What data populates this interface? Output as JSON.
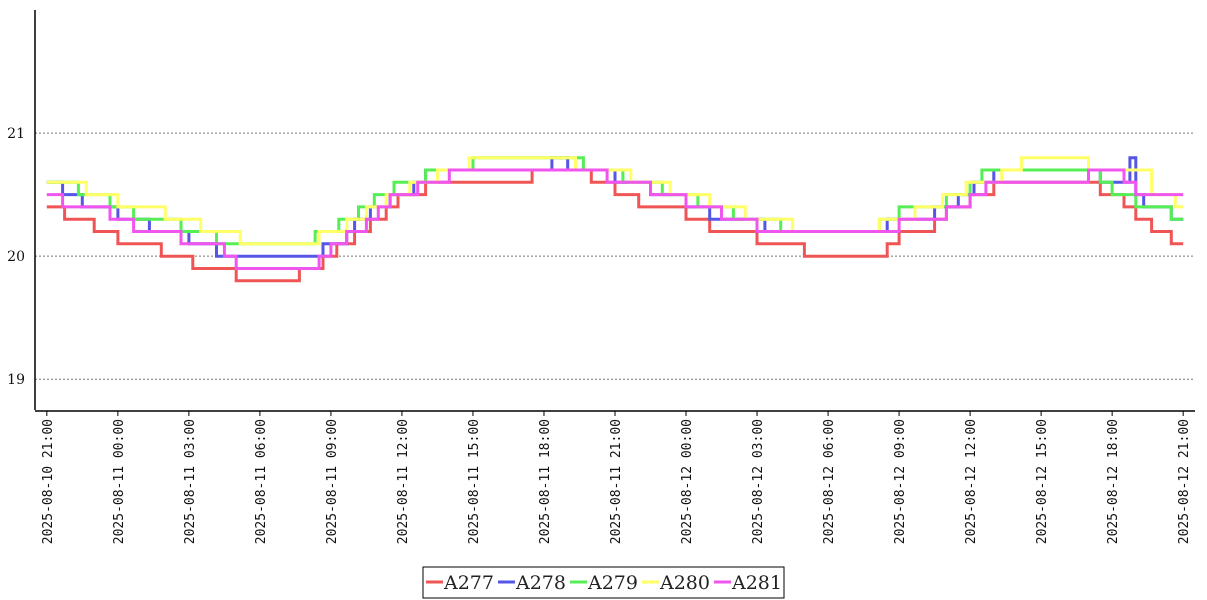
{
  "chart_data": {
    "type": "line",
    "step": true,
    "x_ticks": [
      "2025-08-10 21:00",
      "2025-08-11 00:00",
      "2025-08-11 03:00",
      "2025-08-11 06:00",
      "2025-08-11 09:00",
      "2025-08-11 12:00",
      "2025-08-11 15:00",
      "2025-08-11 18:00",
      "2025-08-11 21:00",
      "2025-08-12 00:00",
      "2025-08-12 03:00",
      "2025-08-12 06:00",
      "2025-08-12 09:00",
      "2025-08-12 12:00",
      "2025-08-12 15:00",
      "2025-08-12 18:00",
      "2025-08-12 21:00"
    ],
    "y_ticks": [
      "19",
      "20",
      "21"
    ],
    "ylim": [
      18.75,
      22
    ],
    "xlim": [
      "2025-08-10 20:30",
      "2025-08-12 21:30"
    ],
    "grid": "horizontal-dotted",
    "legend": "bottom-center",
    "series": [
      {
        "name": "A277",
        "color": "#f05555",
        "points": [
          [
            "2025-08-10 21:00",
            20.4
          ],
          [
            "2025-08-10 21:45",
            20.3
          ],
          [
            "2025-08-10 23:00",
            20.2
          ],
          [
            "2025-08-11 00:00",
            20.1
          ],
          [
            "2025-08-11 01:50",
            20.0
          ],
          [
            "2025-08-11 03:10",
            19.9
          ],
          [
            "2025-08-11 05:00",
            19.8
          ],
          [
            "2025-08-11 07:40",
            19.9
          ],
          [
            "2025-08-11 08:40",
            20.0
          ],
          [
            "2025-08-11 09:15",
            20.1
          ],
          [
            "2025-08-11 10:00",
            20.2
          ],
          [
            "2025-08-11 10:40",
            20.3
          ],
          [
            "2025-08-11 11:20",
            20.4
          ],
          [
            "2025-08-11 11:50",
            20.5
          ],
          [
            "2025-08-11 13:00",
            20.6
          ],
          [
            "2025-08-11 16:00",
            20.6
          ],
          [
            "2025-08-11 17:30",
            20.7
          ],
          [
            "2025-08-11 20:00",
            20.6
          ],
          [
            "2025-08-11 21:00",
            20.5
          ],
          [
            "2025-08-11 22:00",
            20.4
          ],
          [
            "2025-08-12 00:00",
            20.3
          ],
          [
            "2025-08-12 01:00",
            20.2
          ],
          [
            "2025-08-12 03:00",
            20.1
          ],
          [
            "2025-08-12 05:00",
            20.0
          ],
          [
            "2025-08-12 08:30",
            20.1
          ],
          [
            "2025-08-12 09:00",
            20.2
          ],
          [
            "2025-08-12 10:30",
            20.3
          ],
          [
            "2025-08-12 11:00",
            20.4
          ],
          [
            "2025-08-12 12:00",
            20.5
          ],
          [
            "2025-08-12 13:00",
            20.6
          ],
          [
            "2025-08-12 17:30",
            20.5
          ],
          [
            "2025-08-12 18:30",
            20.4
          ],
          [
            "2025-08-12 19:00",
            20.3
          ],
          [
            "2025-08-12 19:40",
            20.2
          ],
          [
            "2025-08-12 20:30",
            20.1
          ],
          [
            "2025-08-12 21:00",
            20.1
          ]
        ]
      },
      {
        "name": "A278",
        "color": "#5555e8",
        "points": [
          [
            "2025-08-10 21:00",
            20.6
          ],
          [
            "2025-08-10 21:40",
            20.5
          ],
          [
            "2025-08-10 22:30",
            20.4
          ],
          [
            "2025-08-11 00:00",
            20.3
          ],
          [
            "2025-08-11 01:20",
            20.2
          ],
          [
            "2025-08-11 03:00",
            20.1
          ],
          [
            "2025-08-11 04:10",
            20.0
          ],
          [
            "2025-08-11 08:40",
            20.1
          ],
          [
            "2025-08-11 09:40",
            20.2
          ],
          [
            "2025-08-11 10:00",
            20.3
          ],
          [
            "2025-08-11 10:40",
            20.4
          ],
          [
            "2025-08-11 11:30",
            20.5
          ],
          [
            "2025-08-11 12:30",
            20.6
          ],
          [
            "2025-08-11 13:00",
            20.7
          ],
          [
            "2025-08-11 16:30",
            20.7
          ],
          [
            "2025-08-11 18:20",
            20.8
          ],
          [
            "2025-08-11 19:00",
            20.7
          ],
          [
            "2025-08-11 21:00",
            20.6
          ],
          [
            "2025-08-11 22:30",
            20.5
          ],
          [
            "2025-08-12 00:00",
            20.4
          ],
          [
            "2025-08-12 01:00",
            20.3
          ],
          [
            "2025-08-12 03:20",
            20.2
          ],
          [
            "2025-08-12 08:30",
            20.3
          ],
          [
            "2025-08-12 10:30",
            20.4
          ],
          [
            "2025-08-12 11:30",
            20.5
          ],
          [
            "2025-08-12 12:10",
            20.6
          ],
          [
            "2025-08-12 13:00",
            20.7
          ],
          [
            "2025-08-12 17:30",
            20.6
          ],
          [
            "2025-08-12 18:30",
            20.6
          ],
          [
            "2025-08-12 18:45",
            20.8
          ],
          [
            "2025-08-12 19:00",
            20.5
          ],
          [
            "2025-08-12 19:20",
            20.4
          ],
          [
            "2025-08-12 20:30",
            20.3
          ],
          [
            "2025-08-12 21:00",
            20.3
          ]
        ]
      },
      {
        "name": "A279",
        "color": "#55ee55",
        "points": [
          [
            "2025-08-10 21:00",
            20.6
          ],
          [
            "2025-08-10 22:20",
            20.5
          ],
          [
            "2025-08-10 23:40",
            20.4
          ],
          [
            "2025-08-11 00:40",
            20.3
          ],
          [
            "2025-08-11 02:40",
            20.2
          ],
          [
            "2025-08-11 04:10",
            20.1
          ],
          [
            "2025-08-11 08:20",
            20.2
          ],
          [
            "2025-08-11 09:20",
            20.3
          ],
          [
            "2025-08-11 10:10",
            20.4
          ],
          [
            "2025-08-11 10:50",
            20.5
          ],
          [
            "2025-08-11 11:40",
            20.6
          ],
          [
            "2025-08-11 13:00",
            20.7
          ],
          [
            "2025-08-11 15:00",
            20.8
          ],
          [
            "2025-08-11 19:00",
            20.8
          ],
          [
            "2025-08-11 19:40",
            20.7
          ],
          [
            "2025-08-11 21:20",
            20.6
          ],
          [
            "2025-08-11 23:00",
            20.5
          ],
          [
            "2025-08-12 00:30",
            20.4
          ],
          [
            "2025-08-12 02:00",
            20.3
          ],
          [
            "2025-08-12 04:00",
            20.2
          ],
          [
            "2025-08-12 08:10",
            20.3
          ],
          [
            "2025-08-12 09:00",
            20.4
          ],
          [
            "2025-08-12 11:00",
            20.5
          ],
          [
            "2025-08-12 12:00",
            20.6
          ],
          [
            "2025-08-12 12:30",
            20.7
          ],
          [
            "2025-08-12 17:30",
            20.6
          ],
          [
            "2025-08-12 18:00",
            20.5
          ],
          [
            "2025-08-12 19:00",
            20.4
          ],
          [
            "2025-08-12 20:30",
            20.3
          ],
          [
            "2025-08-12 21:00",
            20.3
          ]
        ]
      },
      {
        "name": "A280",
        "color": "#ffff66",
        "points": [
          [
            "2025-08-10 21:00",
            20.6
          ],
          [
            "2025-08-10 22:40",
            20.5
          ],
          [
            "2025-08-11 00:00",
            20.4
          ],
          [
            "2025-08-11 02:00",
            20.3
          ],
          [
            "2025-08-11 03:30",
            20.2
          ],
          [
            "2025-08-11 05:10",
            20.1
          ],
          [
            "2025-08-11 08:30",
            20.2
          ],
          [
            "2025-08-11 09:40",
            20.3
          ],
          [
            "2025-08-11 10:30",
            20.4
          ],
          [
            "2025-08-11 11:20",
            20.5
          ],
          [
            "2025-08-11 12:20",
            20.6
          ],
          [
            "2025-08-11 13:30",
            20.7
          ],
          [
            "2025-08-11 14:50",
            20.8
          ],
          [
            "2025-08-11 19:20",
            20.7
          ],
          [
            "2025-08-11 21:40",
            20.6
          ],
          [
            "2025-08-11 23:20",
            20.5
          ],
          [
            "2025-08-12 01:00",
            20.4
          ],
          [
            "2025-08-12 02:30",
            20.3
          ],
          [
            "2025-08-12 04:30",
            20.2
          ],
          [
            "2025-08-12 08:10",
            20.3
          ],
          [
            "2025-08-12 09:40",
            20.4
          ],
          [
            "2025-08-12 10:50",
            20.5
          ],
          [
            "2025-08-12 11:50",
            20.6
          ],
          [
            "2025-08-12 13:20",
            20.7
          ],
          [
            "2025-08-12 14:10",
            20.8
          ],
          [
            "2025-08-12 17:00",
            20.7
          ],
          [
            "2025-08-12 19:40",
            20.5
          ],
          [
            "2025-08-12 20:40",
            20.4
          ],
          [
            "2025-08-12 21:00",
            20.4
          ]
        ]
      },
      {
        "name": "A281",
        "color": "#f055ee",
        "points": [
          [
            "2025-08-10 21:00",
            20.5
          ],
          [
            "2025-08-10 21:40",
            20.4
          ],
          [
            "2025-08-10 23:40",
            20.3
          ],
          [
            "2025-08-11 00:40",
            20.2
          ],
          [
            "2025-08-11 02:40",
            20.1
          ],
          [
            "2025-08-11 04:30",
            20.0
          ],
          [
            "2025-08-11 05:00",
            19.9
          ],
          [
            "2025-08-11 08:30",
            20.0
          ],
          [
            "2025-08-11 09:00",
            20.1
          ],
          [
            "2025-08-11 09:40",
            20.2
          ],
          [
            "2025-08-11 10:30",
            20.3
          ],
          [
            "2025-08-11 11:00",
            20.4
          ],
          [
            "2025-08-11 11:30",
            20.5
          ],
          [
            "2025-08-11 12:40",
            20.6
          ],
          [
            "2025-08-11 14:00",
            20.7
          ],
          [
            "2025-08-11 19:40",
            20.7
          ],
          [
            "2025-08-11 20:40",
            20.6
          ],
          [
            "2025-08-11 22:30",
            20.5
          ],
          [
            "2025-08-12 00:00",
            20.4
          ],
          [
            "2025-08-12 01:30",
            20.3
          ],
          [
            "2025-08-12 03:00",
            20.2
          ],
          [
            "2025-08-12 09:00",
            20.3
          ],
          [
            "2025-08-12 11:00",
            20.4
          ],
          [
            "2025-08-12 12:00",
            20.5
          ],
          [
            "2025-08-12 12:40",
            20.6
          ],
          [
            "2025-08-12 17:00",
            20.7
          ],
          [
            "2025-08-12 18:30",
            20.6
          ],
          [
            "2025-08-12 19:00",
            20.5
          ],
          [
            "2025-08-12 21:00",
            20.5
          ]
        ]
      }
    ]
  }
}
